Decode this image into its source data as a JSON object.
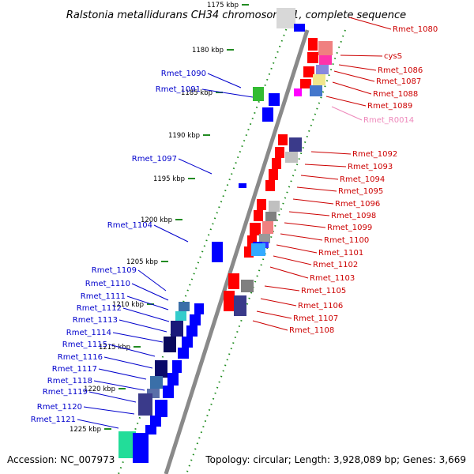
{
  "title": "Ralstonia metallidurans CH34 chromosome 1, complete sequence",
  "footer": {
    "accession": "Accession: NC_007973",
    "summary": "Topology: circular; Length: 3,928,089 bp; Genes: 3,669"
  },
  "kbp_labels": [
    "1175 kbp",
    "1180 kbp",
    "1185 kbp",
    "1190 kbp",
    "1195 kbp",
    "1200 kbp",
    "1205 kbp",
    "1210 kbp",
    "1215 kbp",
    "1220 kbp",
    "1225 kbp"
  ],
  "left_genes": [
    "Rmet_1090",
    "Rmet_1091",
    "Rmet_1097",
    "Rmet_1104",
    "Rmet_1109",
    "Rmet_1110",
    "Rmet_1111",
    "Rmet_1112",
    "Rmet_1113",
    "Rmet_1114",
    "Rmet_1115",
    "Rmet_1116",
    "Rmet_1117",
    "Rmet_1118",
    "Rmet_1119",
    "Rmet_1120",
    "Rmet_1121"
  ],
  "right_genes": [
    "Rmet_1080",
    "cysS",
    "Rmet_1086",
    "Rmet_1087",
    "Rmet_1088",
    "Rmet_1089",
    "Rmet_R0014",
    "Rmet_1092",
    "Rmet_1093",
    "Rmet_1094",
    "Rmet_1095",
    "Rmet_1096",
    "Rmet_1098",
    "Rmet_1099",
    "Rmet_1100",
    "Rmet_1101",
    "Rmet_1102",
    "Rmet_1103",
    "Rmet_1105",
    "Rmet_1106",
    "Rmet_1107",
    "Rmet_1108"
  ],
  "colors": {
    "left_label": "#0000cc",
    "right_label": "#cc0000",
    "rna_label": "#ee88bb",
    "backbone": "#7f7f7f",
    "tick": "#228b22",
    "forward_gene": "#ff0000",
    "reverse_gene": "#0000ff"
  }
}
